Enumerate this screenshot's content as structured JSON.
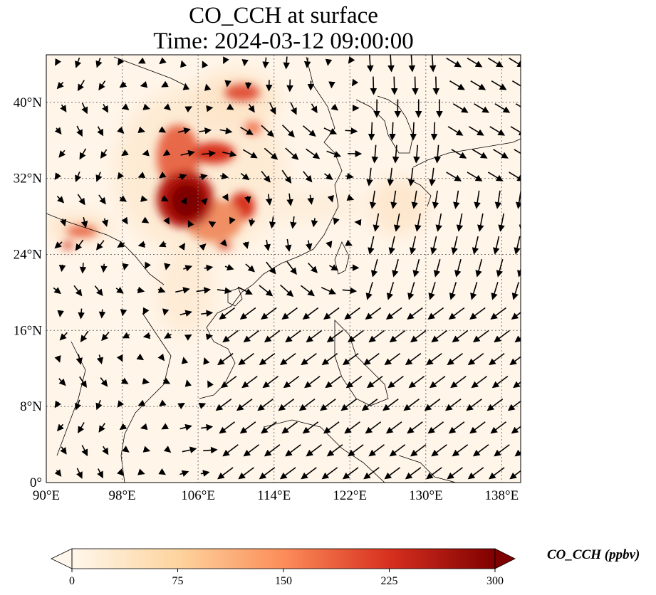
{
  "title_line1": "CO_CCH at surface",
  "title_line2": "Time: 2024-03-12 09:00:00",
  "map": {
    "lon_range": [
      90,
      140
    ],
    "lat_range": [
      0,
      45
    ],
    "lon_ticks": [
      {
        "value": 90,
        "label": "90°E"
      },
      {
        "value": 98,
        "label": "98°E"
      },
      {
        "value": 106,
        "label": "106°E"
      },
      {
        "value": 114,
        "label": "114°E"
      },
      {
        "value": 122,
        "label": "122°E"
      },
      {
        "value": 130,
        "label": "130°E"
      },
      {
        "value": 138,
        "label": "138°E"
      }
    ],
    "lat_ticks": [
      {
        "value": 0,
        "label": "0°"
      },
      {
        "value": 8,
        "label": "8°N"
      },
      {
        "value": 16,
        "label": "16°N"
      },
      {
        "value": 24,
        "label": "24°N"
      },
      {
        "value": 32,
        "label": "32°N"
      },
      {
        "value": 40,
        "label": "40°N"
      }
    ],
    "gridlines": "dotted",
    "wind_vectors": "black arrows over field",
    "colormap": "OrRd"
  },
  "colorbar": {
    "label": "CO_CCH (ppbv)",
    "min": 0,
    "max": 300,
    "ticks": [
      0,
      75,
      150,
      225,
      300
    ],
    "extend": "both",
    "colors": [
      "#fff7ec",
      "#fdd49e",
      "#fc8d59",
      "#d7301f",
      "#7f0000"
    ]
  }
}
